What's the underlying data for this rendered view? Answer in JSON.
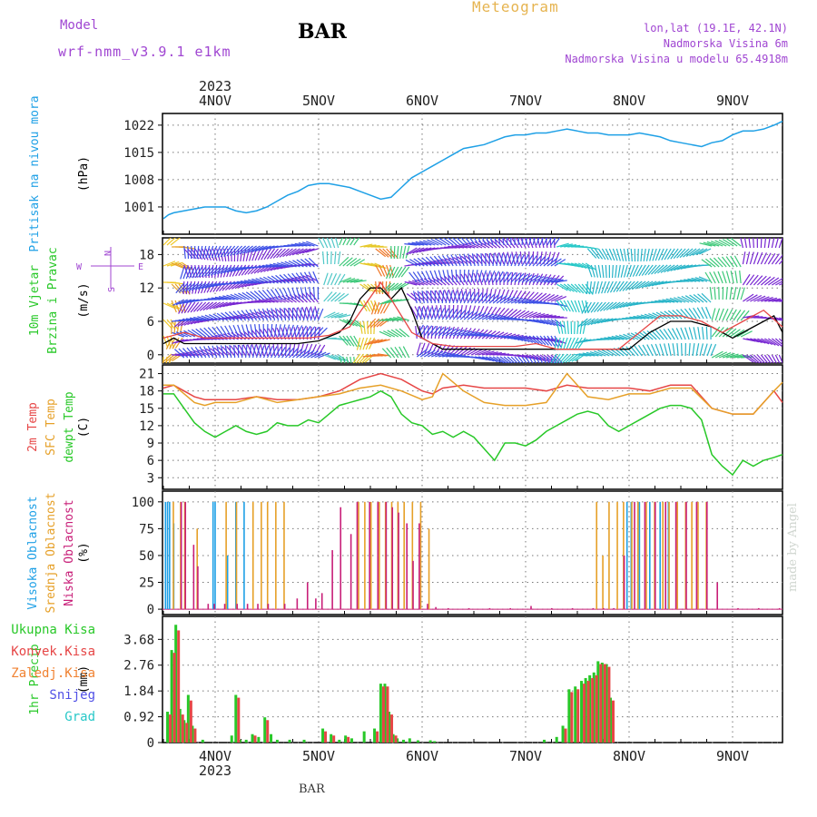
{
  "header": {
    "model_label": "Model",
    "model_name": "wrf-nmm_v3.9.1 e1km",
    "station": "BAR",
    "title": "Meteogram",
    "coords": "lon,lat (19.1E, 42.1N)",
    "altitude": "Nadmorska Visina 6m",
    "model_altitude": "Nadmorska Visina u modelu 65.4918m"
  },
  "footer": {
    "station": "BAR",
    "credit": "made by Angel"
  },
  "colors": {
    "pressure": "#1ea0e6",
    "temp2m": "#e64646",
    "sfc_temp": "#e6a028",
    "dewpoint": "#28c828",
    "high_cloud": "#1ea0e6",
    "mid_cloud": "#e6a028",
    "low_cloud": "#c81e78",
    "total_precip": "#28c828",
    "convective": "#e64646",
    "frozen": "#f08232",
    "snow": "#5050e6",
    "grad": "#28c8c8",
    "wind_speed": "#000000",
    "gust": "#e64646",
    "violet": "#a046d2"
  },
  "time_axis": {
    "year": "2023",
    "ticks": [
      "4NOV",
      "5NOV",
      "6NOV",
      "7NOV",
      "8NOV",
      "9NOV"
    ]
  },
  "chart_data": [
    {
      "panel": "pressure",
      "type": "line",
      "ylabel_left": "Pritisak na nivou mora",
      "unit": "(hPa)",
      "y_ticks": [
        1001,
        1008,
        1015,
        1022
      ],
      "ylim": [
        994,
        1025
      ],
      "x_unit": "days since 4NOV 00UTC",
      "series": [
        {
          "x": [
            -0.5,
            -0.45,
            -0.4,
            -0.3,
            -0.2,
            -0.1,
            0,
            0.1,
            0.2,
            0.3,
            0.4,
            0.5,
            0.6,
            0.7,
            0.8,
            0.9,
            1.0,
            1.1,
            1.2,
            1.3,
            1.4,
            1.5,
            1.6,
            1.7,
            1.8,
            1.9,
            2.0,
            2.1,
            2.2,
            2.3,
            2.4,
            2.5,
            2.6,
            2.7,
            2.8,
            2.9,
            3.0,
            3.1,
            3.2,
            3.3,
            3.4,
            3.5,
            3.6,
            3.7,
            3.8,
            3.9,
            4.0,
            4.1,
            4.2,
            4.3,
            4.4,
            4.5,
            4.6,
            4.7,
            4.8,
            4.9,
            5.0,
            5.1,
            5.2,
            5.3,
            5.4,
            5.5
          ],
          "y": [
            998,
            999,
            999.5,
            1000,
            1000.5,
            1001,
            1001,
            1001,
            1000,
            999.5,
            1000,
            1001,
            1002.5,
            1004,
            1005,
            1006.5,
            1007,
            1007,
            1006.5,
            1006,
            1005,
            1004,
            1003,
            1003.5,
            1006,
            1008.5,
            1010,
            1011.5,
            1013,
            1014.5,
            1016,
            1016.5,
            1017,
            1018,
            1019,
            1019.5,
            1019.5,
            1020,
            1020,
            1020.5,
            1021,
            1020.5,
            1020,
            1020,
            1019.5,
            1019.5,
            1019.5,
            1020,
            1019.5,
            1019,
            1018,
            1017.5,
            1017,
            1016.5,
            1017.5,
            1018,
            1019.5,
            1020.5,
            1020.5,
            1021,
            1022,
            1023
          ]
        }
      ]
    },
    {
      "panel": "wind",
      "type": "line",
      "ylabel_left": "10m Vjetar",
      "ylabel_left2": "Brzina i Pravac",
      "unit": "(m/s)",
      "compass": [
        "N",
        "W",
        "E",
        "S"
      ],
      "y_ticks": [
        0,
        6,
        12,
        18
      ],
      "ylim": [
        -1.5,
        21
      ],
      "series": [
        {
          "name": "speed",
          "x": [
            -0.5,
            -0.4,
            -0.3,
            -0.2,
            -0.1,
            0,
            0.2,
            0.4,
            0.6,
            0.8,
            1.0,
            1.2,
            1.3,
            1.4,
            1.5,
            1.6,
            1.7,
            1.8,
            1.9,
            2.0,
            2.2,
            2.4,
            2.6,
            2.8,
            3.0,
            3.2,
            3.4,
            3.6,
            3.8,
            4.0,
            4.2,
            4.4,
            4.6,
            4.8,
            5.0,
            5.2,
            5.4,
            5.5
          ],
          "y": [
            2,
            3,
            2,
            2,
            2,
            2,
            2,
            2,
            2,
            2,
            2.5,
            4,
            6,
            10,
            12,
            12,
            10,
            12,
            8,
            3,
            1,
            1,
            1,
            1,
            1,
            1,
            1,
            1,
            1,
            1,
            4,
            6,
            6,
            5,
            3,
            5,
            7,
            4
          ]
        },
        {
          "name": "gust",
          "x": [
            -0.5,
            -0.3,
            -0.1,
            0.1,
            0.3,
            0.5,
            0.7,
            0.9,
            1.1,
            1.3,
            1.6,
            1.9,
            2.1,
            2.3,
            2.5,
            2.7,
            2.9,
            3.1,
            3.3,
            3.5,
            3.7,
            3.9,
            4.1,
            4.3,
            4.5,
            4.7,
            4.9,
            5.1,
            5.3,
            5.5
          ],
          "y": [
            3,
            4,
            3,
            3,
            3,
            3,
            3,
            3,
            3.5,
            5,
            13,
            4,
            2,
            1.5,
            1.5,
            1.5,
            1.5,
            2,
            1,
            1,
            1,
            1,
            4,
            7,
            7,
            6,
            4,
            6,
            8,
            5
          ]
        }
      ]
    },
    {
      "panel": "temperature",
      "type": "line",
      "ylabel_left": "2m Temp",
      "ylabel_left2": "SFC Temp",
      "ylabel_left3": "dewpt Temp",
      "unit": "(C)",
      "y_ticks": [
        3,
        6,
        9,
        12,
        15,
        18,
        21
      ],
      "ylim": [
        1,
        22.5
      ],
      "series": [
        {
          "name": "2m Temp",
          "x": [
            -0.5,
            -0.4,
            -0.3,
            -0.2,
            -0.1,
            0,
            0.2,
            0.4,
            0.6,
            0.8,
            1.0,
            1.2,
            1.4,
            1.6,
            1.8,
            2.0,
            2.1,
            2.2,
            2.4,
            2.6,
            2.8,
            3.0,
            3.2,
            3.4,
            3.6,
            3.8,
            4.0,
            4.2,
            4.4,
            4.6,
            4.8,
            5.0,
            5.2,
            5.4,
            5.5
          ],
          "y": [
            18.5,
            19,
            18,
            17,
            16.5,
            16.5,
            16.5,
            17,
            16.5,
            16.5,
            17,
            18,
            20,
            21,
            20,
            18,
            17.5,
            18.5,
            19,
            18.5,
            18.5,
            18.5,
            18,
            19,
            18.5,
            18.5,
            18.5,
            18,
            19,
            19,
            15,
            14,
            14,
            18,
            16
          ]
        },
        {
          "name": "SFC Temp",
          "x": [
            -0.5,
            -0.4,
            -0.3,
            -0.2,
            -0.1,
            0,
            0.2,
            0.4,
            0.6,
            0.8,
            1.0,
            1.2,
            1.4,
            1.6,
            1.8,
            2.0,
            2.1,
            2.2,
            2.4,
            2.6,
            2.8,
            3.0,
            3.2,
            3.4,
            3.6,
            3.8,
            4.0,
            4.2,
            4.4,
            4.6,
            4.8,
            5.0,
            5.2,
            5.4,
            5.5
          ],
          "y": [
            19,
            19,
            17.5,
            16,
            15.5,
            16,
            16,
            17,
            16,
            16.5,
            17,
            17.5,
            18.5,
            19,
            18,
            16.5,
            17,
            21,
            18,
            16,
            15.5,
            15.5,
            16,
            21,
            17,
            16.5,
            17.5,
            17.5,
            18.5,
            18.5,
            15,
            14,
            14,
            18,
            19.5
          ]
        },
        {
          "name": "dewpt Temp",
          "x": [
            -0.5,
            -0.4,
            -0.3,
            -0.2,
            -0.1,
            0,
            0.1,
            0.2,
            0.3,
            0.4,
            0.5,
            0.6,
            0.7,
            0.8,
            0.9,
            1.0,
            1.1,
            1.2,
            1.3,
            1.4,
            1.5,
            1.6,
            1.7,
            1.8,
            1.9,
            2.0,
            2.1,
            2.2,
            2.3,
            2.4,
            2.5,
            2.6,
            2.7,
            2.8,
            2.9,
            3.0,
            3.1,
            3.2,
            3.3,
            3.4,
            3.5,
            3.6,
            3.7,
            3.8,
            3.9,
            4.0,
            4.1,
            4.2,
            4.3,
            4.4,
            4.5,
            4.6,
            4.7,
            4.8,
            4.9,
            5.0,
            5.1,
            5.2,
            5.3,
            5.4,
            5.5
          ],
          "y": [
            17.5,
            17.5,
            15,
            12.5,
            11,
            10,
            11,
            12,
            11,
            10.5,
            11,
            12.5,
            12,
            12,
            13,
            12.5,
            14,
            15.5,
            16,
            16.5,
            17,
            18,
            17,
            14,
            12.5,
            12,
            10.5,
            11,
            10,
            11,
            10,
            8,
            6,
            9,
            9,
            8.5,
            9.5,
            11,
            12,
            13,
            14,
            14.5,
            14,
            12,
            11,
            12,
            13,
            14,
            15,
            15.5,
            15.5,
            15,
            13,
            7,
            5,
            3.5,
            6,
            5,
            6,
            6.5,
            7
          ]
        }
      ]
    },
    {
      "panel": "clouds",
      "type": "bar",
      "ylabel_left": "Visoka Oblacnost",
      "ylabel_left2": "Srednja Oblacnost",
      "ylabel_left3": "Niska Oblacnost",
      "unit": "(%)",
      "y_ticks": [
        0,
        25,
        50,
        75,
        100
      ],
      "ylim": [
        -5,
        110
      ],
      "series": [
        {
          "name": "Visoka Oblacnost",
          "x": [
            -0.48,
            -0.46,
            -0.44,
            -0.4,
            -0.02,
            0.0,
            0.12,
            0.2,
            0.28,
            3.98,
            4.02,
            4.1,
            4.2,
            4.3,
            4.38
          ],
          "y": [
            100,
            100,
            100,
            80,
            100,
            100,
            50,
            100,
            100,
            100,
            100,
            100,
            100,
            100,
            100
          ]
        },
        {
          "name": "Srednja Oblacnost",
          "x": [
            -0.43,
            -0.36,
            -0.32,
            -0.2,
            0.08,
            0.18,
            0.34,
            0.42,
            0.48,
            0.56,
            0.64,
            1.36,
            1.42,
            1.48,
            1.56,
            1.62,
            1.68,
            1.74,
            1.8,
            1.88,
            1.96,
            2.04,
            3.66,
            3.72,
            3.78,
            3.86,
            3.92,
            4.0,
            4.06,
            4.14,
            4.22,
            4.3,
            4.36,
            4.44,
            4.52,
            4.58,
            4.64,
            4.72
          ],
          "y": [
            100,
            100,
            100,
            75,
            100,
            100,
            100,
            100,
            100,
            100,
            100,
            100,
            100,
            100,
            100,
            100,
            100,
            100,
            100,
            100,
            100,
            75,
            100,
            50,
            100,
            100,
            100,
            100,
            100,
            100,
            100,
            100,
            100,
            100,
            100,
            100,
            100,
            100
          ]
        },
        {
          "name": "Niska Oblacnost",
          "x": [
            -0.38,
            -0.34,
            -0.26,
            -0.22,
            -0.12,
            -0.06,
            0.04,
            0.16,
            0.26,
            0.36,
            0.46,
            0.62,
            0.74,
            0.84,
            0.92,
            0.98,
            1.08,
            1.16,
            1.26,
            1.32,
            1.44,
            1.52,
            1.6,
            1.66,
            1.72,
            1.8,
            1.86,
            1.92,
            2.0,
            2.08,
            2.2,
            2.4,
            2.6,
            2.8,
            3.0,
            3.2,
            3.4,
            3.6,
            3.7,
            3.8,
            3.9,
            4.0,
            4.1,
            4.2,
            4.3,
            4.4,
            4.5,
            4.6,
            4.7,
            4.8,
            5.0,
            5.2,
            5.4
          ],
          "y": [
            100,
            100,
            60,
            40,
            5,
            5,
            5,
            5,
            5,
            5,
            5,
            5,
            10,
            25,
            10,
            15,
            55,
            95,
            70,
            100,
            100,
            100,
            100,
            95,
            90,
            80,
            45,
            80,
            5,
            2,
            1,
            1,
            1,
            1,
            3,
            1,
            1,
            1,
            1,
            1,
            50,
            100,
            100,
            100,
            100,
            100,
            100,
            100,
            100,
            25,
            1,
            1,
            1
          ]
        }
      ]
    },
    {
      "panel": "precip",
      "type": "bar",
      "ylabel_left": "1hr Precip",
      "unit": "(mm)",
      "legend": [
        "Ukupna Kisa",
        "Konvek.Kisa",
        "Zaledj.Kisa",
        "Snijeg",
        "Grad"
      ],
      "y_ticks": [
        0,
        0.92,
        1.84,
        2.76,
        3.68
      ],
      "ylim": [
        0,
        4.5
      ],
      "series": [
        {
          "name": "Ukupna Kisa",
          "x": [
            -0.46,
            -0.42,
            -0.38,
            -0.34,
            -0.3,
            -0.26,
            -0.22,
            -0.12,
            0.16,
            0.2,
            0.24,
            0.3,
            0.36,
            0.42,
            0.48,
            0.54,
            0.6,
            0.72,
            0.86,
            1.04,
            1.12,
            1.2,
            1.26,
            1.32,
            1.44,
            1.54,
            1.6,
            1.64,
            1.68,
            1.72,
            1.76,
            1.82,
            1.88,
            1.96,
            2.08,
            2.12,
            3.18,
            3.3,
            3.36,
            3.42,
            3.48,
            3.54,
            3.58,
            3.62,
            3.66,
            3.7,
            3.74,
            3.78,
            3.82
          ],
          "y": [
            1.1,
            3.3,
            4.2,
            1.2,
            0.8,
            1.7,
            0.6,
            0.1,
            0.25,
            1.7,
            0.1,
            0.1,
            0.3,
            0.2,
            0.9,
            0.3,
            0.1,
            0.1,
            0.1,
            0.5,
            0.3,
            0.1,
            0.25,
            0.15,
            0.4,
            0.5,
            2.1,
            2.1,
            1.1,
            0.3,
            0.15,
            0.1,
            0.15,
            0.08,
            0.08,
            0.05,
            0.1,
            0.2,
            0.6,
            1.9,
            2.0,
            2.2,
            2.3,
            2.4,
            2.5,
            2.9,
            2.85,
            2.8,
            1.6
          ]
        },
        {
          "name": "Konvek.Kisa",
          "x": [
            -0.46,
            -0.42,
            -0.38,
            -0.34,
            -0.3,
            -0.26,
            -0.22,
            0.2,
            0.36,
            0.48,
            1.04,
            1.12,
            1.26,
            1.54,
            1.6,
            1.64,
            1.68,
            1.72,
            3.36,
            3.42,
            3.48,
            3.54,
            3.58,
            3.62,
            3.66,
            3.7,
            3.74,
            3.78,
            3.82
          ],
          "y": [
            1.0,
            3.2,
            4.0,
            1.0,
            0.7,
            1.5,
            0.5,
            1.6,
            0.25,
            0.8,
            0.4,
            0.25,
            0.2,
            0.4,
            2.0,
            2.0,
            1.0,
            0.25,
            0.5,
            1.8,
            1.9,
            2.1,
            2.2,
            2.3,
            2.4,
            2.8,
            2.8,
            2.7,
            1.5
          ]
        }
      ]
    }
  ]
}
